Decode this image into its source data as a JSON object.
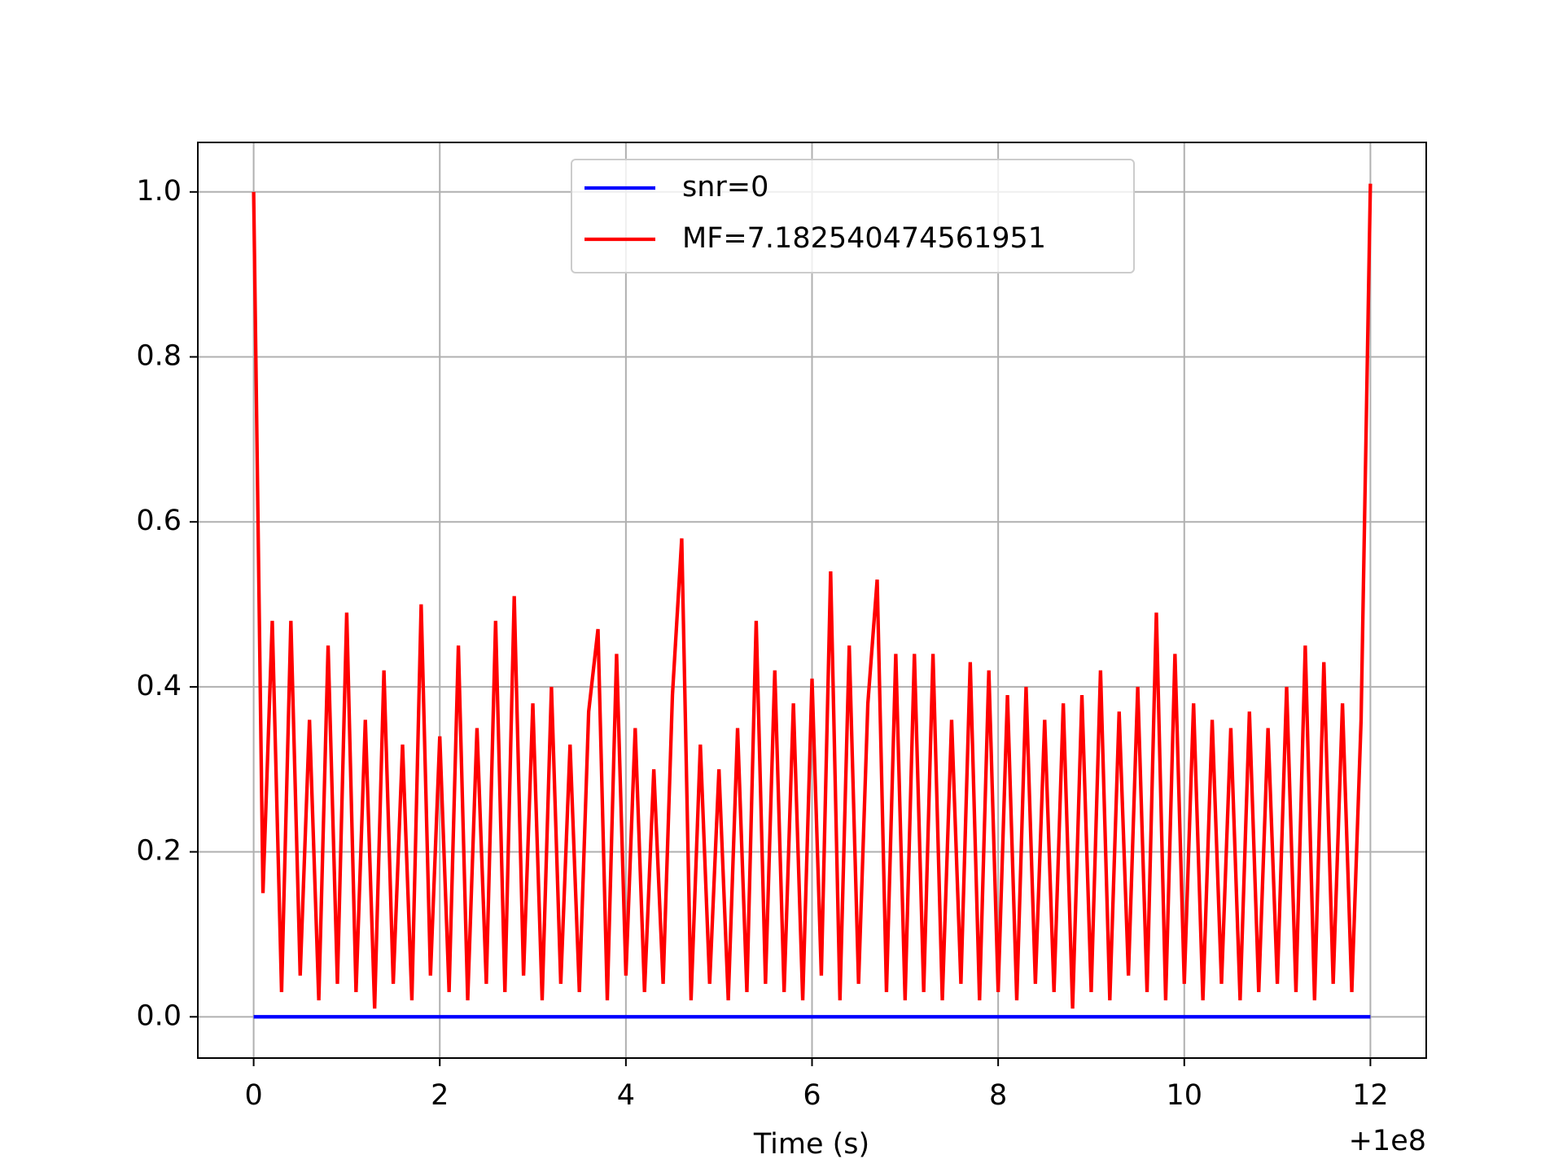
{
  "chart_data": {
    "type": "line",
    "xlabel": "Time (s)",
    "x_offset_label": "+1e8",
    "xlim": [
      -0.6,
      12.6
    ],
    "xticks": [
      0,
      2,
      4,
      6,
      8,
      10,
      12
    ],
    "ylim": [
      -0.05,
      1.06
    ],
    "yticks": [
      {
        "value": 0,
        "label": "0.0"
      },
      0.2,
      0.4,
      0.6,
      0.8,
      {
        "value": 1,
        "label": "1.0"
      }
    ],
    "grid": true,
    "legend": "upper center",
    "series": [
      {
        "name": "snr=0",
        "color": "#0000ff",
        "x": [
          0,
          12
        ],
        "values": [
          0,
          0
        ]
      },
      {
        "name": "MF=7.182540474561951",
        "color": "#ff0000",
        "x": [
          0,
          0.1,
          0.2,
          0.3,
          0.4,
          0.5,
          0.6,
          0.7,
          0.8,
          0.9,
          1,
          1.1,
          1.2,
          1.3,
          1.4,
          1.5,
          1.6,
          1.7,
          1.8,
          1.9,
          2,
          2.1,
          2.2,
          2.3,
          2.4,
          2.5,
          2.6,
          2.7,
          2.8,
          2.9,
          3,
          3.1,
          3.2,
          3.3,
          3.4,
          3.5,
          3.6,
          3.7,
          3.8,
          3.9,
          4,
          4.1,
          4.2,
          4.3,
          4.4,
          4.5,
          4.6,
          4.7,
          4.8,
          4.9,
          5,
          5.1,
          5.2,
          5.3,
          5.4,
          5.5,
          5.6,
          5.7,
          5.8,
          5.9,
          6,
          6.1,
          6.2,
          6.3,
          6.4,
          6.5,
          6.6,
          6.7,
          6.8,
          6.9,
          7,
          7.1,
          7.2,
          7.3,
          7.4,
          7.5,
          7.6,
          7.7,
          7.8,
          7.9,
          8,
          8.1,
          8.2,
          8.3,
          8.4,
          8.5,
          8.6,
          8.7,
          8.8,
          8.9,
          9,
          9.1,
          9.2,
          9.3,
          9.4,
          9.5,
          9.6,
          9.7,
          9.8,
          9.9,
          10,
          10.1,
          10.2,
          10.3,
          10.4,
          10.5,
          10.6,
          10.7,
          10.8,
          10.9,
          11,
          11.1,
          11.2,
          11.3,
          11.4,
          11.5,
          11.6,
          11.7,
          11.8,
          11.9,
          12
        ],
        "values": [
          1.0,
          0.15,
          0.48,
          0.03,
          0.48,
          0.05,
          0.36,
          0.02,
          0.45,
          0.04,
          0.49,
          0.03,
          0.36,
          0.01,
          0.42,
          0.04,
          0.33,
          0.02,
          0.5,
          0.05,
          0.34,
          0.03,
          0.45,
          0.02,
          0.35,
          0.04,
          0.48,
          0.03,
          0.51,
          0.05,
          0.38,
          0.02,
          0.4,
          0.04,
          0.33,
          0.03,
          0.37,
          0.47,
          0.02,
          0.44,
          0.05,
          0.35,
          0.03,
          0.3,
          0.04,
          0.39,
          0.58,
          0.02,
          0.33,
          0.04,
          0.3,
          0.02,
          0.35,
          0.03,
          0.48,
          0.04,
          0.42,
          0.03,
          0.38,
          0.02,
          0.41,
          0.05,
          0.54,
          0.02,
          0.45,
          0.04,
          0.38,
          0.53,
          0.03,
          0.44,
          0.02,
          0.44,
          0.03,
          0.44,
          0.02,
          0.36,
          0.04,
          0.43,
          0.02,
          0.42,
          0.03,
          0.39,
          0.02,
          0.4,
          0.04,
          0.36,
          0.03,
          0.38,
          0.01,
          0.39,
          0.03,
          0.42,
          0.02,
          0.37,
          0.05,
          0.4,
          0.03,
          0.49,
          0.02,
          0.44,
          0.04,
          0.38,
          0.02,
          0.36,
          0.04,
          0.35,
          0.02,
          0.37,
          0.03,
          0.35,
          0.04,
          0.4,
          0.03,
          0.45,
          0.02,
          0.43,
          0.04,
          0.38,
          0.03,
          0.36,
          1.01
        ]
      }
    ]
  }
}
